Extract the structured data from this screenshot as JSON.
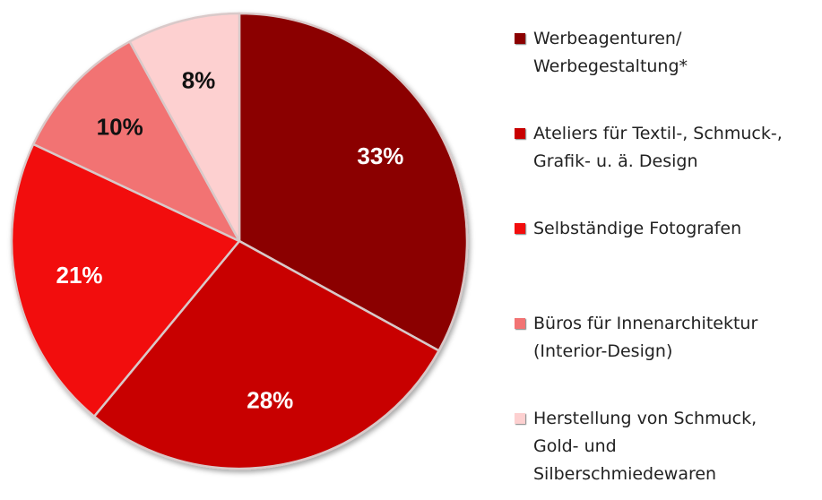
{
  "chart_data": {
    "type": "pie",
    "categories": [
      "Werbeagenturen/\nWerbegestaltung*",
      "Ateliers für Textil-, Schmuck-,\nGrafik- u. ä. Design",
      "Selbständige Fotografen",
      "Büros für Innenarchitektur\n(Interior-Design)",
      "Herstellung von Schmuck,\nGold- und\nSilberschmiedewaren"
    ],
    "values": [
      33,
      28,
      21,
      10,
      8
    ],
    "value_labels": [
      "33%",
      "28%",
      "21%",
      "10%",
      "8%"
    ],
    "colors": [
      "#8b0000",
      "#c80000",
      "#f20d0d",
      "#f27373",
      "#fdd0d0"
    ],
    "legend": "right"
  }
}
